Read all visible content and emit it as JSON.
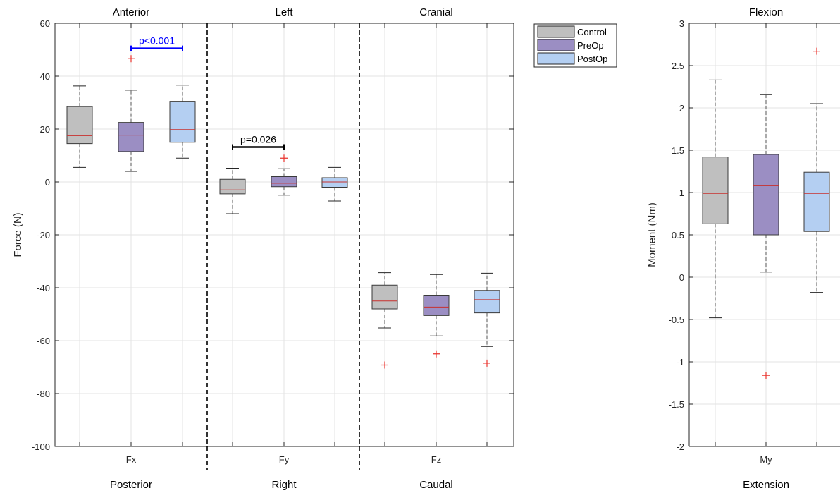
{
  "colors": {
    "Control": "#bfbfbf",
    "PreOp": "#9b8ec3",
    "PostOp": "#b4cff2",
    "median": "#c8302e",
    "outlier": "#e8322c",
    "whisker": "#555555",
    "sig_blue": "#0000ff",
    "sig_black": "#000000"
  },
  "legend": {
    "placement": "top-right",
    "entries": [
      "Control",
      "PreOp",
      "PostOp"
    ]
  },
  "chart_data": [
    {
      "type": "box",
      "ylabel": "Force (N)",
      "ylim": [
        -100,
        60
      ],
      "yticks": [
        "60",
        "40",
        "20",
        "0",
        "-20",
        "-40",
        "-60",
        "-80",
        "-100"
      ],
      "ytick_values": [
        60,
        40,
        20,
        0,
        -20,
        -40,
        -60,
        -80,
        -100
      ],
      "grid": true,
      "groups": [
        {
          "tick": "Fx",
          "top_label": "Anterior",
          "bottom_label": "Posterior",
          "boxes": [
            {
              "series": "Control",
              "min": 5.5,
              "q1": 14.5,
              "median": 17.5,
              "q3": 28.5,
              "max": 36.3,
              "outliers": []
            },
            {
              "series": "PreOp",
              "min": 4.0,
              "q1": 11.5,
              "median": 17.7,
              "q3": 22.5,
              "max": 34.7,
              "outliers": [
                46.6
              ]
            },
            {
              "series": "PostOp",
              "min": 9.0,
              "q1": 15.0,
              "median": 19.8,
              "q3": 30.5,
              "max": 36.6,
              "outliers": []
            }
          ],
          "significance": {
            "text": "p<0.001",
            "from": "PreOp",
            "to": "PostOp",
            "y": 50.5,
            "color": "blue"
          }
        },
        {
          "tick": "Fy",
          "top_label": "Left",
          "bottom_label": "Right",
          "boxes": [
            {
              "series": "Control",
              "min": -12.0,
              "q1": -4.5,
              "median": -3.0,
              "q3": 1.0,
              "max": 5.2,
              "outliers": []
            },
            {
              "series": "PreOp",
              "min": -5.0,
              "q1": -1.8,
              "median": -0.5,
              "q3": 2.0,
              "max": 5.0,
              "outliers": [
                9.0
              ]
            },
            {
              "series": "PostOp",
              "min": -7.2,
              "q1": -2.0,
              "median": 0.0,
              "q3": 1.6,
              "max": 5.5,
              "outliers": []
            }
          ],
          "significance": {
            "text": "p=0.026",
            "from": "Control",
            "to": "PreOp",
            "y": 13.2,
            "color": "black"
          }
        },
        {
          "tick": "Fz",
          "top_label": "Cranial",
          "bottom_label": "Caudal",
          "boxes": [
            {
              "series": "Control",
              "min": -55.2,
              "q1": -48.0,
              "median": -45.0,
              "q3": -39.0,
              "max": -34.3,
              "outliers": [
                -69.2
              ]
            },
            {
              "series": "PreOp",
              "min": -58.2,
              "q1": -50.5,
              "median": -47.3,
              "q3": -42.8,
              "max": -35.0,
              "outliers": [
                -65.0
              ]
            },
            {
              "series": "PostOp",
              "min": -62.2,
              "q1": -49.5,
              "median": -44.5,
              "q3": -41.0,
              "max": -34.5,
              "outliers": [
                -68.5
              ]
            }
          ]
        }
      ]
    },
    {
      "type": "box",
      "ylabel": "Moment (Nm)",
      "ylim": [
        -2,
        3
      ],
      "yticks": [
        "3",
        "2.5",
        "2",
        "1.5",
        "1",
        "0.5",
        "0",
        "-0.5",
        "-1",
        "-1.5",
        "-2"
      ],
      "ytick_values": [
        3,
        2.5,
        2,
        1.5,
        1,
        0.5,
        0,
        -0.5,
        -1,
        -1.5,
        -2
      ],
      "grid": true,
      "groups": [
        {
          "tick": "My",
          "top_label": "Flexion",
          "bottom_label": "Extension",
          "boxes": [
            {
              "series": "Control",
              "min": -0.48,
              "q1": 0.63,
              "median": 0.99,
              "q3": 1.42,
              "max": 2.33,
              "outliers": []
            },
            {
              "series": "PreOp",
              "min": 0.06,
              "q1": 0.5,
              "median": 1.08,
              "q3": 1.45,
              "max": 2.16,
              "outliers": [
                -1.16
              ]
            },
            {
              "series": "PostOp",
              "min": -0.18,
              "q1": 0.54,
              "median": 0.99,
              "q3": 1.24,
              "max": 2.05,
              "outliers": [
                2.67
              ]
            }
          ]
        }
      ]
    }
  ]
}
